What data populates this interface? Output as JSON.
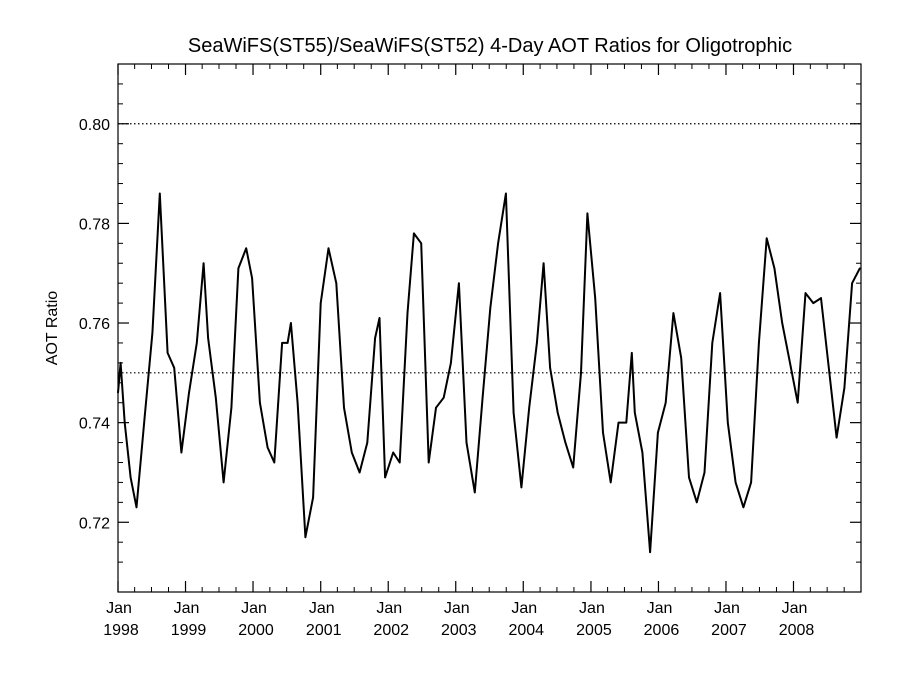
{
  "chart_data": {
    "type": "line",
    "title": "SeaWiFS(ST55)/SeaWiFS(ST52) 4-Day AOT Ratios for Oligotrophic",
    "xlabel": "",
    "ylabel": "AOT Ratio",
    "xlim": [
      "1998-01-01",
      "2008-12-31"
    ],
    "ylim": [
      0.706,
      0.812
    ],
    "yticks": [
      0.72,
      0.74,
      0.76,
      0.78,
      0.8
    ],
    "ytick_labels": [
      "0.72",
      "0.74",
      "0.76",
      "0.78",
      "0.80"
    ],
    "xticks": [
      {
        "month": "Jan",
        "year": "1998",
        "date": "1998-01-01"
      },
      {
        "month": "Jan",
        "year": "1999",
        "date": "1999-01-01"
      },
      {
        "month": "Jan",
        "year": "2000",
        "date": "2000-01-01"
      },
      {
        "month": "Jan",
        "year": "2001",
        "date": "2001-01-01"
      },
      {
        "month": "Jan",
        "year": "2002",
        "date": "2002-01-01"
      },
      {
        "month": "Jan",
        "year": "2003",
        "date": "2003-01-01"
      },
      {
        "month": "Jan",
        "year": "2004",
        "date": "2004-01-01"
      },
      {
        "month": "Jan",
        "year": "2005",
        "date": "2005-01-01"
      },
      {
        "month": "Jan",
        "year": "2006",
        "date": "2006-01-01"
      },
      {
        "month": "Jan",
        "year": "2007",
        "date": "2007-01-01"
      },
      {
        "month": "Jan",
        "year": "2008",
        "date": "2008-01-01"
      }
    ],
    "reference_lines": [
      {
        "y": 0.8,
        "style": "dotted"
      },
      {
        "y": 0.75,
        "style": "dotted"
      }
    ],
    "grid": false,
    "legend": "none",
    "series": [
      {
        "color": "#000000",
        "points": [
          [
            "1997-12-26",
            0.746
          ],
          [
            "1998-01-15",
            0.752
          ],
          [
            "1998-02-06",
            0.74
          ],
          [
            "1998-03-10",
            0.729
          ],
          [
            "1998-04-11",
            0.723
          ],
          [
            "1998-05-25",
            0.741
          ],
          [
            "1998-07-06",
            0.758
          ],
          [
            "1998-08-15",
            0.786
          ],
          [
            "1998-09-26",
            0.754
          ],
          [
            "1998-11-01",
            0.751
          ],
          [
            "1998-12-10",
            0.734
          ],
          [
            "1999-01-20",
            0.746
          ],
          [
            "1999-03-03",
            0.756
          ],
          [
            "1999-04-09",
            0.772
          ],
          [
            "1999-05-03",
            0.757
          ],
          [
            "1999-06-14",
            0.745
          ],
          [
            "1999-07-26",
            0.728
          ],
          [
            "1999-09-06",
            0.743
          ],
          [
            "1999-10-14",
            0.771
          ],
          [
            "1999-11-25",
            0.775
          ],
          [
            "1999-12-27",
            0.769
          ],
          [
            "2000-02-07",
            0.744
          ],
          [
            "2000-03-20",
            0.735
          ],
          [
            "2000-04-25",
            0.732
          ],
          [
            "2000-06-06",
            0.756
          ],
          [
            "2000-07-06",
            0.756
          ],
          [
            "2000-07-24",
            0.76
          ],
          [
            "2000-08-29",
            0.744
          ],
          [
            "2000-10-10",
            0.717
          ],
          [
            "2000-11-21",
            0.725
          ],
          [
            "2001-01-01",
            0.764
          ],
          [
            "2001-02-12",
            0.775
          ],
          [
            "2001-03-26",
            0.768
          ],
          [
            "2001-05-07",
            0.743
          ],
          [
            "2001-06-18",
            0.734
          ],
          [
            "2001-07-30",
            0.73
          ],
          [
            "2001-09-10",
            0.736
          ],
          [
            "2001-10-22",
            0.757
          ],
          [
            "2001-11-15",
            0.761
          ],
          [
            "2001-12-15",
            0.729
          ],
          [
            "2002-01-28",
            0.734
          ],
          [
            "2002-03-04",
            0.732
          ],
          [
            "2002-04-15",
            0.762
          ],
          [
            "2002-05-20",
            0.778
          ],
          [
            "2002-06-28",
            0.776
          ],
          [
            "2002-08-08",
            0.732
          ],
          [
            "2002-09-16",
            0.743
          ],
          [
            "2002-10-28",
            0.745
          ],
          [
            "2002-12-06",
            0.752
          ],
          [
            "2003-01-18",
            0.768
          ],
          [
            "2003-02-28",
            0.736
          ],
          [
            "2003-04-14",
            0.726
          ],
          [
            "2003-05-26",
            0.745
          ],
          [
            "2003-07-07",
            0.763
          ],
          [
            "2003-08-18",
            0.776
          ],
          [
            "2003-09-29",
            0.786
          ],
          [
            "2003-11-10",
            0.742
          ],
          [
            "2003-12-22",
            0.727
          ],
          [
            "2004-02-02",
            0.743
          ],
          [
            "2004-03-15",
            0.756
          ],
          [
            "2004-04-20",
            0.772
          ],
          [
            "2004-05-25",
            0.751
          ],
          [
            "2004-07-05",
            0.742
          ],
          [
            "2004-08-16",
            0.736
          ],
          [
            "2004-09-27",
            0.731
          ],
          [
            "2004-11-08",
            0.75
          ],
          [
            "2004-12-13",
            0.782
          ],
          [
            "2005-01-24",
            0.765
          ],
          [
            "2005-03-07",
            0.738
          ],
          [
            "2005-04-18",
            0.728
          ],
          [
            "2005-05-30",
            0.74
          ],
          [
            "2005-07-11",
            0.74
          ],
          [
            "2005-08-10",
            0.754
          ],
          [
            "2005-08-26",
            0.742
          ],
          [
            "2005-10-06",
            0.734
          ],
          [
            "2005-11-17",
            0.714
          ],
          [
            "2005-12-29",
            0.738
          ],
          [
            "2006-02-09",
            0.744
          ],
          [
            "2006-03-23",
            0.762
          ],
          [
            "2006-05-04",
            0.753
          ],
          [
            "2006-06-15",
            0.729
          ],
          [
            "2006-07-27",
            0.724
          ],
          [
            "2006-09-07",
            0.73
          ],
          [
            "2006-10-19",
            0.756
          ],
          [
            "2006-11-30",
            0.766
          ],
          [
            "2007-01-11",
            0.74
          ],
          [
            "2007-02-22",
            0.728
          ],
          [
            "2007-04-05",
            0.723
          ],
          [
            "2007-05-17",
            0.728
          ],
          [
            "2007-06-28",
            0.756
          ],
          [
            "2007-08-09",
            0.777
          ],
          [
            "2007-09-20",
            0.771
          ],
          [
            "2007-11-01",
            0.76
          ],
          [
            "2007-12-13",
            0.752
          ],
          [
            "2008-01-24",
            0.744
          ],
          [
            "2008-03-06",
            0.766
          ],
          [
            "2008-04-17",
            0.764
          ],
          [
            "2008-05-29",
            0.765
          ],
          [
            "2008-07-10",
            0.751
          ],
          [
            "2008-08-21",
            0.737
          ],
          [
            "2008-10-02",
            0.747
          ],
          [
            "2008-11-13",
            0.768
          ],
          [
            "2008-12-25",
            0.771
          ]
        ]
      }
    ]
  }
}
